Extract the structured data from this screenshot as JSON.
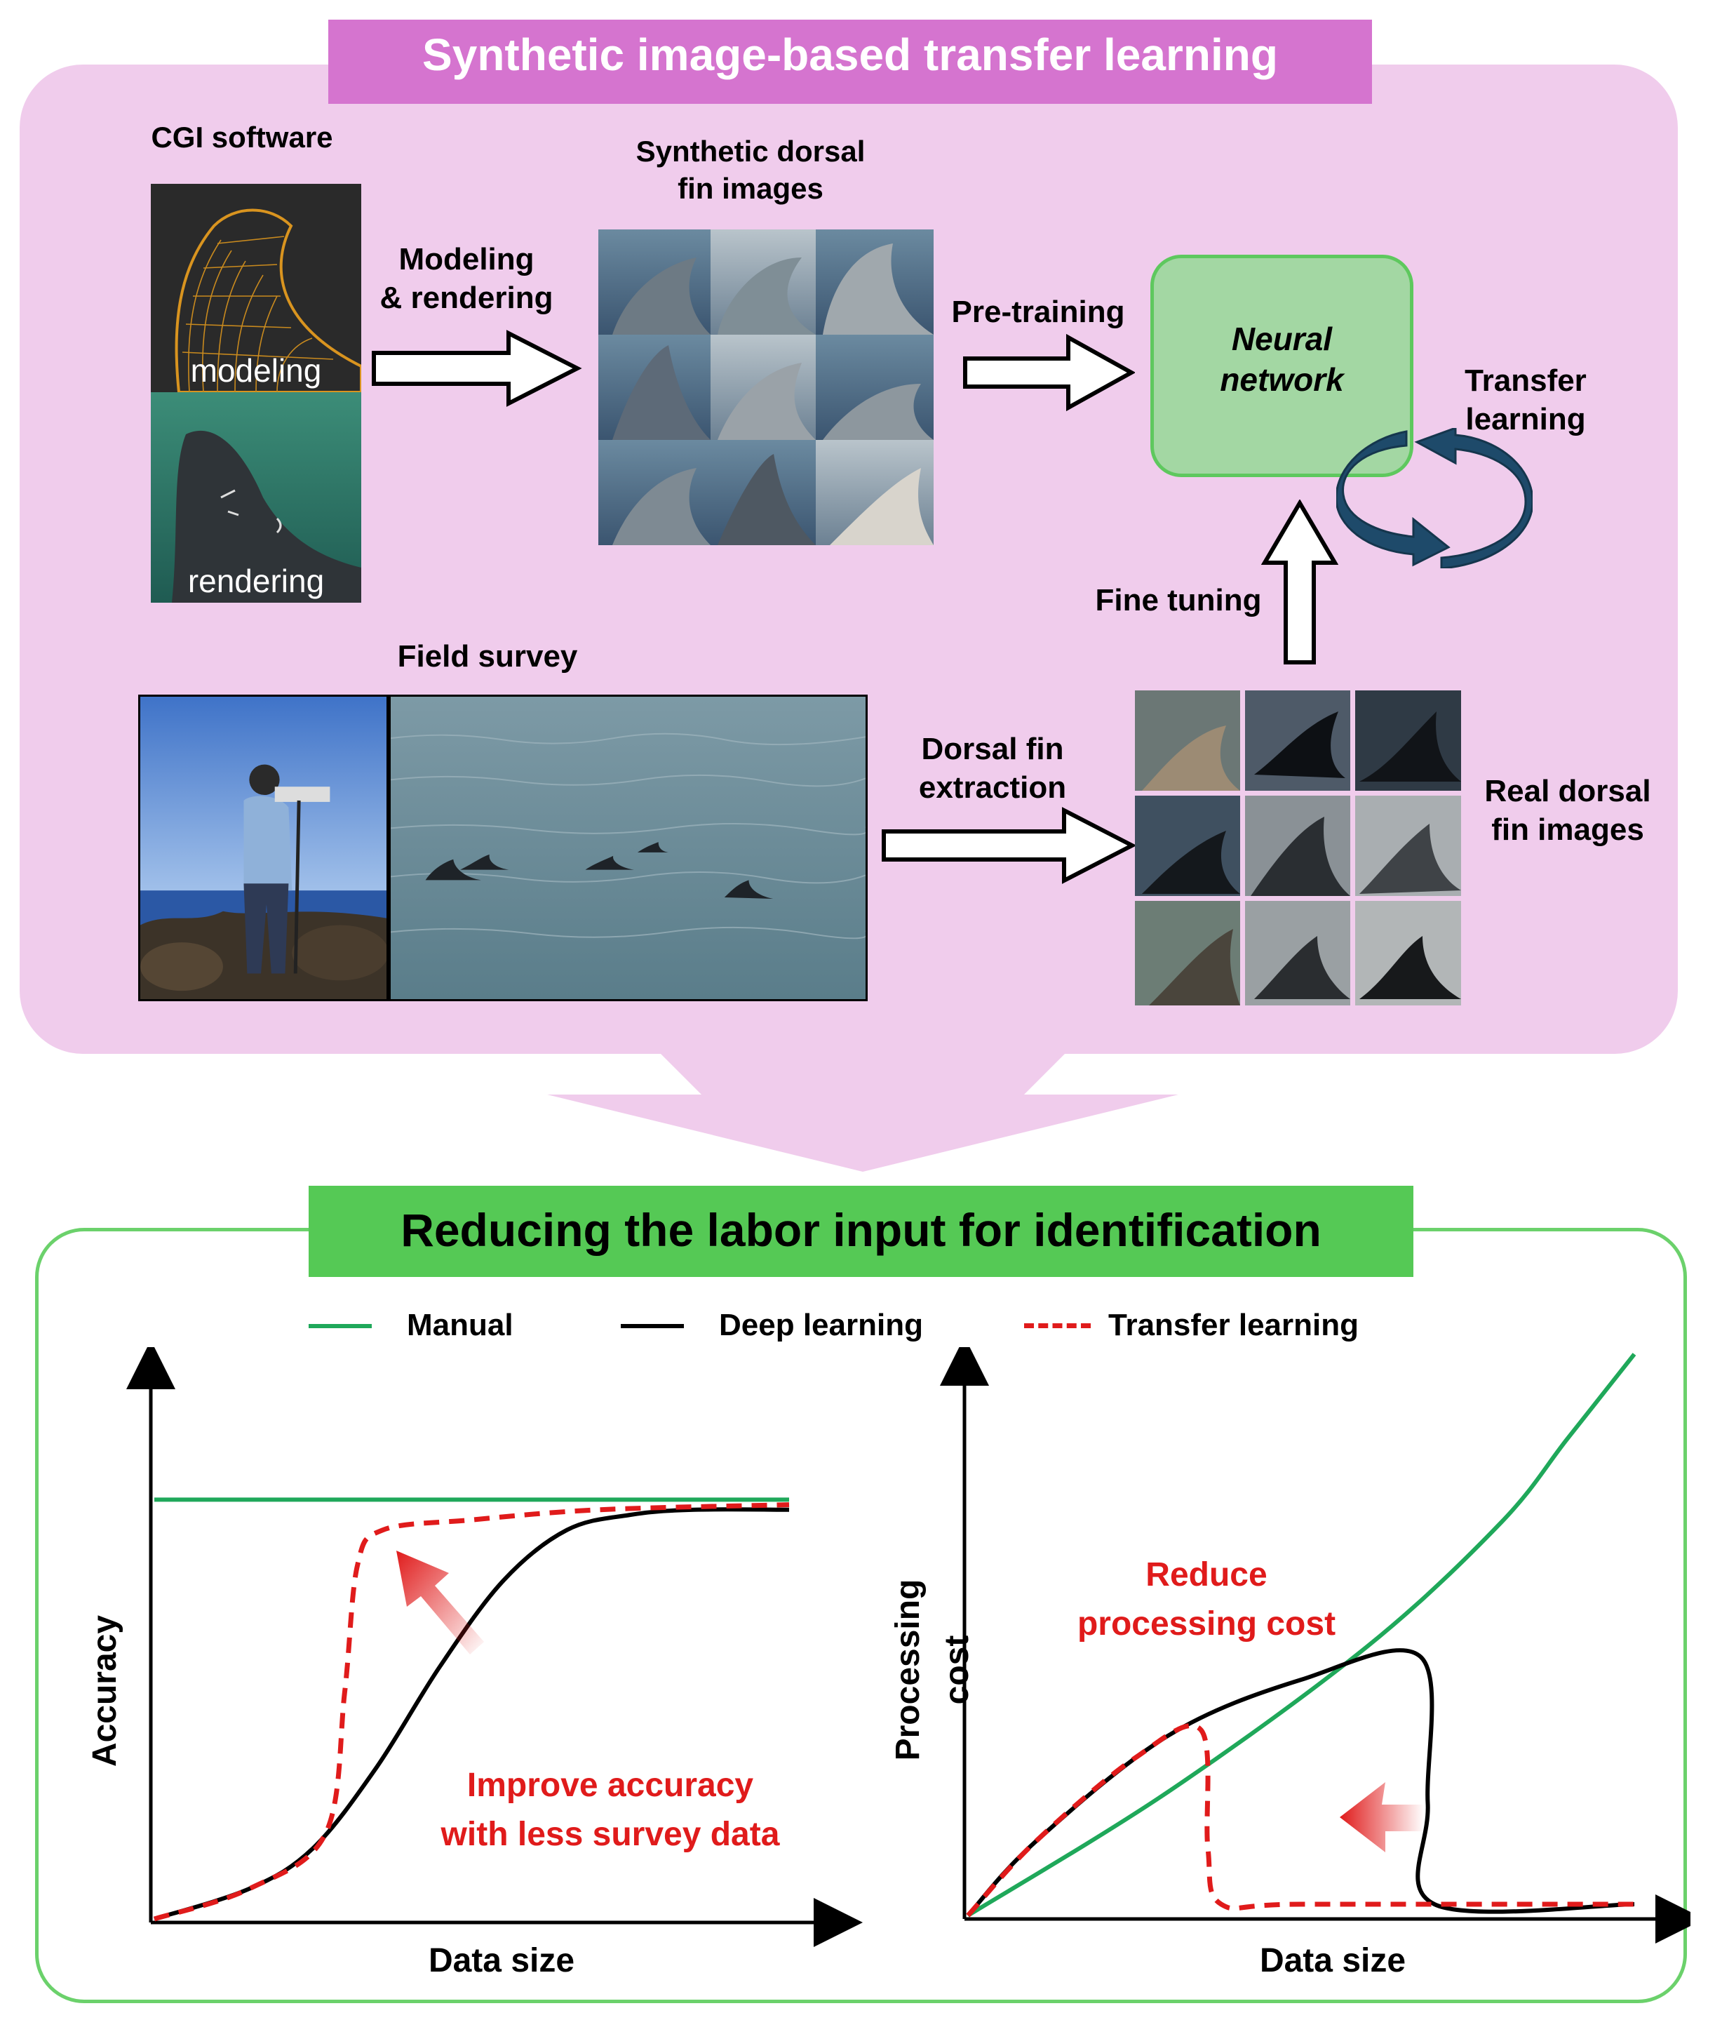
{
  "top_panel": {
    "title": "Synthetic image-based transfer learning",
    "cgi_label": "CGI software",
    "cgi_images": [
      {
        "caption": "modeling"
      },
      {
        "caption": "rendering"
      }
    ],
    "arrow_modeling_label": "Modeling\n& rendering",
    "synthetic_label": "Synthetic dorsal\nfin images",
    "pretraining_label": "Pre-training",
    "neural_network_label": "Neural\nnetwork",
    "transfer_learning_label": "Transfer\nlearning",
    "fine_tuning_label": "Fine tuning",
    "field_survey_label": "Field survey",
    "extraction_label": "Dorsal fin\nextraction",
    "real_label": "Real dorsal\nfin images"
  },
  "bottom_panel": {
    "title": "Reducing the labor input for identification",
    "legend": [
      {
        "label": "Manual",
        "color": "#1fa85a",
        "style": "solid"
      },
      {
        "label": "Deep learning",
        "color": "#000000",
        "style": "solid"
      },
      {
        "label": "Transfer learning",
        "color": "#e01b1b",
        "style": "dashed"
      }
    ]
  },
  "chart_data": [
    {
      "type": "line",
      "title": "",
      "xlabel": "Data size",
      "ylabel": "Accuracy",
      "annotation": "Improve accuracy\nwith less survey data",
      "series": [
        {
          "name": "Manual",
          "x": [
            0,
            1
          ],
          "y": [
            0.83,
            0.83
          ]
        },
        {
          "name": "Deep learning",
          "x": [
            0,
            0.15,
            0.25,
            0.35,
            0.45,
            0.55,
            0.65,
            0.75,
            0.85,
            1.0
          ],
          "y": [
            0,
            0.06,
            0.14,
            0.3,
            0.5,
            0.67,
            0.77,
            0.8,
            0.81,
            0.81
          ]
        },
        {
          "name": "Transfer learning",
          "x": [
            0,
            0.15,
            0.27,
            0.3,
            0.32,
            0.36,
            0.5,
            0.7,
            1.0
          ],
          "y": [
            0,
            0.06,
            0.17,
            0.45,
            0.7,
            0.77,
            0.79,
            0.81,
            0.82
          ]
        }
      ]
    },
    {
      "type": "line",
      "title": "",
      "xlabel": "Data size",
      "ylabel": "Processing\ncost",
      "annotation": "Reduce\nprocessing cost",
      "series": [
        {
          "name": "Manual",
          "x": [
            0,
            0.3,
            0.6,
            0.8,
            0.9,
            1.0
          ],
          "y": [
            0,
            0.22,
            0.48,
            0.7,
            0.85,
            1.0
          ]
        },
        {
          "name": "Deep learning",
          "x": [
            0,
            0.1,
            0.3,
            0.5,
            0.68,
            0.69,
            0.7,
            1.0
          ],
          "y": [
            0,
            0.13,
            0.32,
            0.42,
            0.46,
            0.2,
            0.02,
            0.02
          ]
        },
        {
          "name": "Transfer learning",
          "x": [
            0,
            0.1,
            0.25,
            0.35,
            0.36,
            0.38,
            0.5,
            1.0
          ],
          "y": [
            0,
            0.13,
            0.28,
            0.33,
            0.12,
            0.02,
            0.02,
            0.02
          ]
        }
      ]
    }
  ]
}
